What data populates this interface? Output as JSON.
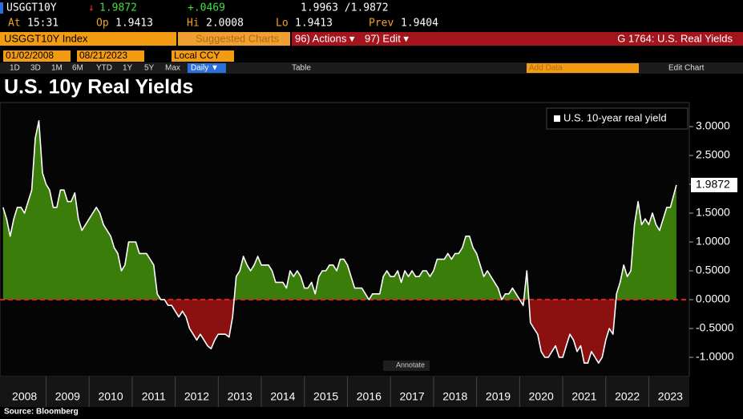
{
  "header": {
    "ticker": "USGGT10Y",
    "arrow": "↓",
    "last": "1.9872",
    "change": "+.0469",
    "bid_ask": "1.9963 /1.9872",
    "stats": [
      {
        "label": "At",
        "value": "15:31"
      },
      {
        "label": "Op",
        "value": "1.9413"
      },
      {
        "label": "Hi",
        "value": "2.0008"
      },
      {
        "label": "Lo",
        "value": "1.9413"
      },
      {
        "label": "Prev",
        "value": "1.9404"
      }
    ]
  },
  "toolbar": {
    "security": "USGGT10Y Index",
    "suggested": "Suggested Charts",
    "actions": "96) Actions ▾",
    "edit": "97) Edit ▾",
    "chart_id": "G 1764: U.S. Real Yields"
  },
  "controls": {
    "start": "01/02/2008",
    "end": "08/21/2023",
    "currency": "Local CCY",
    "ranges": [
      "1D",
      "3D",
      "1M",
      "6M",
      "YTD",
      "1Y",
      "5Y",
      "Max"
    ],
    "frequency": "Daily ▼",
    "table": "Table",
    "add_data": "Add Data",
    "edit_chart": "Edit Chart"
  },
  "chart_data": {
    "type": "line",
    "title": "U.S. 10y Real Yields",
    "annotate": "Annotate",
    "source": "Source: Bloomberg",
    "xlim": [
      2007.93,
      2023.94
    ],
    "xticks": [
      {
        "value": 2008.5,
        "label": "2008"
      },
      {
        "value": 2009.5,
        "label": "2009"
      },
      {
        "value": 2010.5,
        "label": "2010"
      },
      {
        "value": 2011.5,
        "label": "2011"
      },
      {
        "value": 2012.5,
        "label": "2012"
      },
      {
        "value": 2013.5,
        "label": "2013"
      },
      {
        "value": 2014.5,
        "label": "2014"
      },
      {
        "value": 2015.5,
        "label": "2015"
      },
      {
        "value": 2016.5,
        "label": "2016"
      },
      {
        "value": 2017.5,
        "label": "2017"
      },
      {
        "value": 2018.5,
        "label": "2018"
      },
      {
        "value": 2019.5,
        "label": "2019"
      },
      {
        "value": 2020.5,
        "label": "2020"
      },
      {
        "value": 2021.5,
        "label": "2021"
      },
      {
        "value": 2022.5,
        "label": "2022"
      },
      {
        "value": 2023.5,
        "label": "2023"
      }
    ],
    "ylim": [
      -1.333,
      3.417
    ],
    "yticks": [
      {
        "value": -1,
        "label": "-1.0000"
      },
      {
        "value": -0.5,
        "label": "-0.5000"
      },
      {
        "value": 0,
        "label": "0.0000"
      },
      {
        "value": 0.5,
        "label": "0.5000"
      },
      {
        "value": 1,
        "label": "1.0000"
      },
      {
        "value": 1.5,
        "label": "1.5000"
      },
      {
        "value": 2,
        "label": "2.0000"
      },
      {
        "value": 2.5,
        "label": "2.5000"
      },
      {
        "value": 3,
        "label": "3.0000"
      }
    ],
    "legend": "top-right",
    "above_color": "#3a7d0a",
    "below_color": "#8b1010",
    "zero_line_color": "#e02020",
    "series": [
      {
        "name": "U.S. 10-year real yield",
        "color": "#ffffff",
        "x": [
          2008,
          2008.083,
          2008.167,
          2008.25,
          2008.333,
          2008.417,
          2008.5,
          2008.583,
          2008.667,
          2008.75,
          2008.833,
          2008.917,
          2009,
          2009.083,
          2009.167,
          2009.25,
          2009.333,
          2009.417,
          2009.5,
          2009.583,
          2009.667,
          2009.75,
          2009.833,
          2009.917,
          2010,
          2010.083,
          2010.167,
          2010.25,
          2010.333,
          2010.417,
          2010.5,
          2010.583,
          2010.667,
          2010.75,
          2010.833,
          2010.917,
          2011,
          2011.083,
          2011.167,
          2011.25,
          2011.333,
          2011.417,
          2011.5,
          2011.583,
          2011.667,
          2011.75,
          2011.833,
          2011.917,
          2012,
          2012.083,
          2012.167,
          2012.25,
          2012.333,
          2012.417,
          2012.5,
          2012.583,
          2012.667,
          2012.75,
          2012.833,
          2012.917,
          2013,
          2013.083,
          2013.167,
          2013.25,
          2013.333,
          2013.417,
          2013.5,
          2013.583,
          2013.667,
          2013.75,
          2013.833,
          2013.917,
          2014,
          2014.083,
          2014.167,
          2014.25,
          2014.333,
          2014.417,
          2014.5,
          2014.583,
          2014.667,
          2014.75,
          2014.833,
          2014.917,
          2015,
          2015.083,
          2015.167,
          2015.25,
          2015.333,
          2015.417,
          2015.5,
          2015.583,
          2015.667,
          2015.75,
          2015.833,
          2015.917,
          2016,
          2016.083,
          2016.167,
          2016.25,
          2016.333,
          2016.417,
          2016.5,
          2016.583,
          2016.667,
          2016.75,
          2016.833,
          2016.917,
          2017,
          2017.083,
          2017.167,
          2017.25,
          2017.333,
          2017.417,
          2017.5,
          2017.583,
          2017.667,
          2017.75,
          2017.833,
          2017.917,
          2018,
          2018.083,
          2018.167,
          2018.25,
          2018.333,
          2018.417,
          2018.5,
          2018.583,
          2018.667,
          2018.75,
          2018.833,
          2018.917,
          2019,
          2019.083,
          2019.167,
          2019.25,
          2019.333,
          2019.417,
          2019.5,
          2019.583,
          2019.667,
          2019.75,
          2019.833,
          2019.917,
          2020,
          2020.083,
          2020.167,
          2020.25,
          2020.333,
          2020.417,
          2020.5,
          2020.583,
          2020.667,
          2020.75,
          2020.833,
          2020.917,
          2021,
          2021.083,
          2021.167,
          2021.25,
          2021.333,
          2021.417,
          2021.5,
          2021.583,
          2021.667,
          2021.75,
          2021.833,
          2021.917,
          2022,
          2022.083,
          2022.167,
          2022.25,
          2022.333,
          2022.417,
          2022.5,
          2022.583,
          2022.667,
          2022.75,
          2022.833,
          2022.917,
          2023,
          2023.083,
          2023.167,
          2023.25,
          2023.333,
          2023.417,
          2023.5,
          2023.64
        ],
        "values": [
          1.6,
          1.4,
          1.1,
          1.4,
          1.6,
          1.6,
          1.5,
          1.7,
          1.9,
          2.8,
          3.1,
          2.2,
          2.0,
          1.9,
          1.6,
          1.6,
          1.9,
          1.9,
          1.7,
          1.7,
          1.85,
          1.4,
          1.2,
          1.3,
          1.4,
          1.5,
          1.6,
          1.5,
          1.3,
          1.2,
          1.1,
          0.9,
          0.8,
          0.5,
          0.6,
          1.0,
          1.0,
          1.0,
          0.8,
          0.8,
          0.8,
          0.7,
          0.6,
          0.1,
          0.0,
          0.0,
          -0.1,
          -0.1,
          -0.2,
          -0.3,
          -0.2,
          -0.3,
          -0.5,
          -0.6,
          -0.7,
          -0.6,
          -0.7,
          -0.8,
          -0.85,
          -0.7,
          -0.6,
          -0.6,
          -0.6,
          -0.65,
          -0.3,
          0.4,
          0.5,
          0.75,
          0.6,
          0.5,
          0.6,
          0.75,
          0.6,
          0.6,
          0.6,
          0.5,
          0.3,
          0.3,
          0.3,
          0.2,
          0.5,
          0.4,
          0.5,
          0.4,
          0.2,
          0.2,
          0.3,
          0.1,
          0.4,
          0.5,
          0.5,
          0.6,
          0.6,
          0.5,
          0.7,
          0.7,
          0.6,
          0.4,
          0.2,
          0.2,
          0.2,
          0.1,
          0.0,
          0.1,
          0.1,
          0.1,
          0.4,
          0.5,
          0.4,
          0.4,
          0.5,
          0.3,
          0.5,
          0.4,
          0.5,
          0.4,
          0.4,
          0.5,
          0.5,
          0.4,
          0.5,
          0.7,
          0.7,
          0.7,
          0.8,
          0.7,
          0.8,
          0.8,
          0.9,
          1.1,
          1.1,
          0.9,
          0.8,
          0.6,
          0.4,
          0.5,
          0.4,
          0.3,
          0.2,
          0.0,
          0.1,
          0.1,
          0.2,
          0.1,
          0.0,
          -0.1,
          0.5,
          -0.4,
          -0.5,
          -0.6,
          -0.9,
          -1.0,
          -1.0,
          -0.9,
          -0.8,
          -1.0,
          -1.0,
          -0.8,
          -0.6,
          -0.7,
          -0.9,
          -0.8,
          -1.1,
          -1.1,
          -0.9,
          -1.0,
          -1.1,
          -1.0,
          -0.7,
          -0.5,
          -0.6,
          0.1,
          0.3,
          0.6,
          0.4,
          0.5,
          1.3,
          1.7,
          1.3,
          1.4,
          1.3,
          1.5,
          1.3,
          1.2,
          1.4,
          1.6,
          1.6,
          1.9872
        ]
      }
    ]
  }
}
